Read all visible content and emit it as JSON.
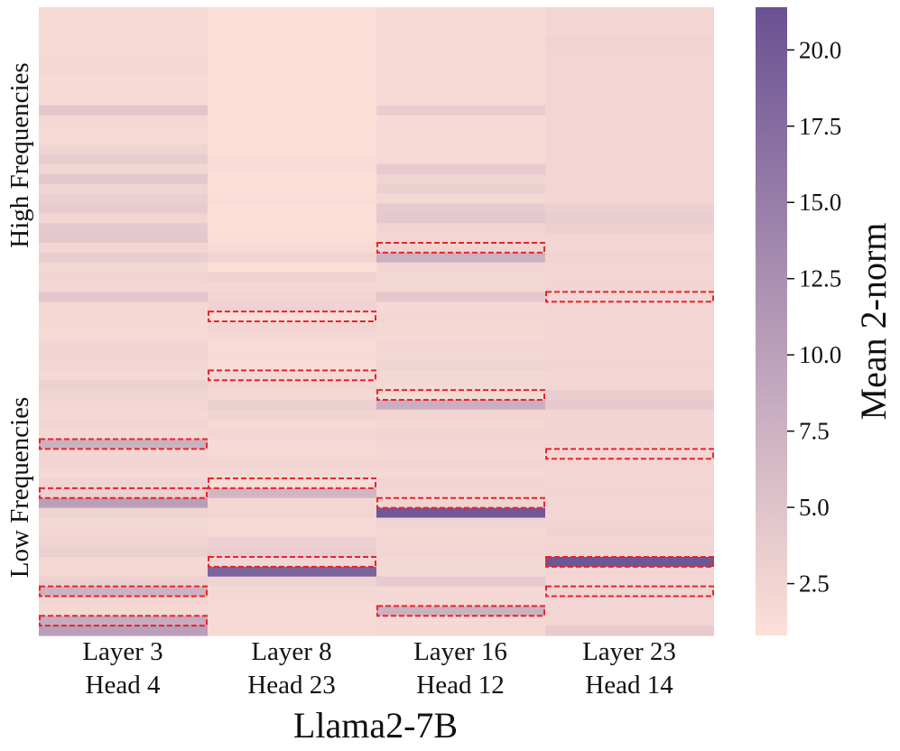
{
  "chart_data": {
    "type": "heatmap",
    "title": "",
    "xlabel": "Llama2-7B",
    "ylabel_top": "High Frequencies",
    "ylabel_bottom": "Low Frequencies",
    "columns": [
      {
        "line1": "Layer 3",
        "line2": "Head 4"
      },
      {
        "line1": "Layer 8",
        "line2": "Head 23"
      },
      {
        "line1": "Layer 16",
        "line2": "Head 12"
      },
      {
        "line1": "Layer 23",
        "line2": "Head 14"
      }
    ],
    "rows": 64,
    "colorbar": {
      "label": "Mean 2-norm",
      "min": 0.8,
      "max": 21.4,
      "ticks": [
        "2.5",
        "5.0",
        "7.5",
        "10.0",
        "12.5",
        "15.0",
        "17.5",
        "20.0"
      ],
      "color_low": "#fde0d8",
      "color_high": "#6a5193"
    },
    "highlight_color": "#e8232b",
    "values": [
      [
        1.8,
        1.6,
        1.7,
        1.8,
        1.6,
        1.9,
        2.0,
        1.7,
        1.6,
        1.8,
        4.6,
        2.0,
        1.8,
        1.6,
        2.6,
        3.6,
        2.3,
        4.2,
        2.6,
        3.2,
        3.8,
        2.4,
        4.0,
        4.2,
        2.2,
        3.4,
        2.0,
        2.6,
        2.2,
        4.5,
        1.9,
        2.0,
        1.8,
        1.6,
        2.4,
        2.6,
        2.2,
        2.0,
        3.0,
        2.6,
        2.2,
        2.0,
        2.4,
        2.0,
        7.6,
        2.2,
        2.4,
        2.0,
        2.6,
        3.0,
        10.2,
        2.6,
        2.0,
        2.2,
        2.6,
        3.2,
        2.0,
        1.9,
        3.0,
        7.4,
        2.4,
        2.0,
        8.4,
        10.2
      ],
      [
        1.0,
        1.0,
        1.0,
        1.0,
        1.0,
        1.0,
        1.0,
        1.0,
        1.0,
        1.0,
        1.0,
        1.0,
        1.0,
        1.0,
        1.0,
        1.4,
        1.4,
        1.0,
        1.0,
        1.3,
        1.0,
        1.0,
        1.0,
        1.2,
        1.6,
        2.4,
        1.0,
        2.8,
        2.0,
        2.2,
        2.8,
        1.3,
        2.4,
        2.0,
        1.4,
        1.6,
        1.4,
        2.0,
        2.2,
        1.8,
        3.2,
        2.6,
        1.8,
        2.2,
        1.6,
        1.8,
        2.2,
        2.0,
        1.4,
        6.8,
        2.2,
        2.4,
        1.6,
        1.8,
        3.2,
        3.6,
        2.2,
        18.8,
        2.6,
        2.0,
        1.8,
        1.6,
        1.6,
        1.6
      ],
      [
        1.6,
        1.6,
        1.6,
        1.6,
        1.6,
        1.6,
        1.6,
        1.6,
        1.6,
        1.6,
        3.6,
        1.6,
        1.6,
        1.6,
        1.6,
        1.8,
        4.0,
        2.6,
        3.2,
        2.0,
        4.0,
        4.2,
        2.6,
        2.2,
        2.6,
        7.6,
        2.4,
        2.0,
        2.0,
        4.4,
        1.8,
        2.2,
        2.0,
        1.9,
        2.2,
        2.0,
        2.6,
        2.0,
        2.0,
        2.0,
        7.8,
        2.4,
        2.0,
        2.4,
        2.2,
        2.0,
        2.2,
        2.0,
        2.4,
        2.2,
        2.6,
        20.6,
        2.6,
        2.0,
        2.2,
        2.2,
        2.0,
        2.0,
        4.0,
        1.8,
        2.0,
        7.6,
        2.0,
        2.0
      ],
      [
        2.2,
        2.2,
        2.2,
        2.6,
        2.4,
        2.2,
        2.2,
        2.2,
        2.2,
        2.2,
        2.2,
        2.2,
        2.2,
        2.2,
        2.2,
        2.2,
        2.2,
        2.2,
        2.2,
        2.2,
        3.0,
        3.6,
        3.0,
        2.2,
        2.2,
        2.6,
        2.2,
        2.2,
        2.4,
        2.2,
        2.2,
        2.2,
        2.2,
        2.2,
        2.2,
        2.2,
        2.6,
        2.2,
        2.2,
        3.4,
        4.0,
        2.4,
        2.4,
        2.4,
        2.2,
        2.2,
        2.4,
        2.2,
        2.2,
        2.4,
        2.2,
        2.2,
        2.4,
        2.8,
        2.2,
        2.4,
        20.8,
        2.4,
        2.2,
        2.6,
        2.2,
        2.2,
        2.2,
        3.8
      ]
    ],
    "highlights": [
      {
        "column": 0,
        "rows": [
          44,
          49,
          59,
          62
        ]
      },
      {
        "column": 1,
        "rows": [
          31,
          37,
          48,
          56
        ]
      },
      {
        "column": 2,
        "rows": [
          24,
          39,
          50,
          61
        ]
      },
      {
        "column": 3,
        "rows": [
          29,
          45,
          56,
          59
        ]
      }
    ]
  }
}
